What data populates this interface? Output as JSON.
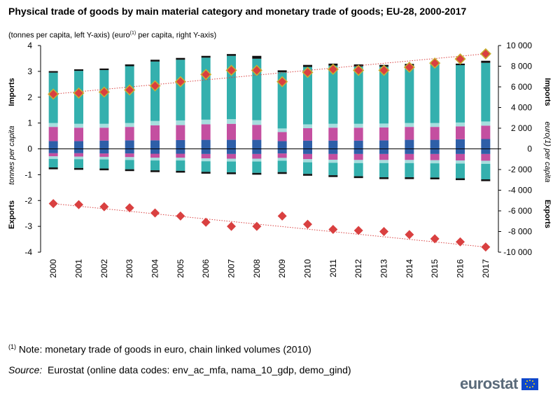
{
  "title": "Physical trade of goods by main material category and monetary trade of goods; EU-28, 2000-2017",
  "subtitle_left": "(tonnes per capita, left Y-axis) (euro",
  "subtitle_sup": "(1)",
  "subtitle_right": " per capita, right Y-axis)",
  "footnote_marker": "(1)",
  "footnote_text": "Note: monetary trade of goods in euro, chain linked volumes (2010)",
  "source_label": "Source:",
  "source_text": "Eurostat (online data codes: env_ac_mfa, nama_10_gdp, demo_gind)",
  "logo_text": "eurostat",
  "chart_data": {
    "type": "bar",
    "stacked": true,
    "categories": [
      "2000",
      "2001",
      "2002",
      "2003",
      "2004",
      "2005",
      "2006",
      "2007",
      "2008",
      "2009",
      "2010",
      "2011",
      "2012",
      "2013",
      "2014",
      "2015",
      "2016",
      "2017"
    ],
    "left_axis": {
      "label": "tonnes per capita",
      "ylim": [
        -4,
        4
      ],
      "ticks": [
        "4",
        "3",
        "2",
        "1",
        "0",
        "-1",
        "-2",
        "-3",
        "-4"
      ]
    },
    "right_axis": {
      "label": "euro(1) per capita",
      "ylim": [
        -10000,
        10000
      ],
      "ticks": [
        "10 000",
        "8 000",
        "6 000",
        "4 000",
        "2 000",
        "0",
        "-2 000",
        "-4 000",
        "-6 000",
        "-8 000",
        "-10 000"
      ]
    },
    "side_labels": {
      "imports": "Imports",
      "exports": "Exports"
    },
    "imports_stacks": [
      {
        "name": "blue",
        "color": "#2e5fa8",
        "values": [
          0.3,
          0.3,
          0.32,
          0.33,
          0.33,
          0.34,
          0.35,
          0.35,
          0.35,
          0.3,
          0.32,
          0.32,
          0.32,
          0.33,
          0.35,
          0.35,
          0.37,
          0.38
        ]
      },
      {
        "name": "magenta",
        "color": "#c44fa0",
        "values": [
          0.55,
          0.52,
          0.5,
          0.52,
          0.58,
          0.58,
          0.6,
          0.62,
          0.58,
          0.35,
          0.48,
          0.5,
          0.5,
          0.5,
          0.5,
          0.5,
          0.5,
          0.52
        ]
      },
      {
        "name": "light cyan",
        "color": "#a6dede",
        "values": [
          0.15,
          0.15,
          0.15,
          0.15,
          0.17,
          0.18,
          0.18,
          0.18,
          0.18,
          0.14,
          0.15,
          0.15,
          0.15,
          0.15,
          0.15,
          0.15,
          0.15,
          0.16
        ]
      },
      {
        "name": "teal",
        "color": "#34b0ae",
        "values": [
          1.95,
          2.05,
          2.08,
          2.2,
          2.3,
          2.35,
          2.4,
          2.45,
          2.38,
          2.18,
          2.22,
          2.25,
          2.22,
          2.2,
          2.22,
          2.28,
          2.22,
          2.27
        ]
      },
      {
        "name": "black",
        "color": "#111111",
        "values": [
          0.06,
          0.06,
          0.06,
          0.07,
          0.07,
          0.07,
          0.07,
          0.07,
          0.11,
          0.07,
          0.08,
          0.08,
          0.08,
          0.07,
          0.07,
          0.07,
          0.06,
          0.08
        ]
      }
    ],
    "exports_stacks": [
      {
        "name": "blue",
        "color": "#2e5fa8",
        "values": [
          0.17,
          0.17,
          0.18,
          0.18,
          0.19,
          0.19,
          0.2,
          0.2,
          0.2,
          0.18,
          0.2,
          0.2,
          0.2,
          0.2,
          0.2,
          0.2,
          0.2,
          0.2
        ]
      },
      {
        "name": "magenta",
        "color": "#c44fa0",
        "values": [
          0.12,
          0.13,
          0.13,
          0.14,
          0.15,
          0.15,
          0.17,
          0.18,
          0.18,
          0.17,
          0.2,
          0.22,
          0.23,
          0.23,
          0.23,
          0.24,
          0.25,
          0.26
        ]
      },
      {
        "name": "light cyan",
        "color": "#a6dede",
        "values": [
          0.1,
          0.1,
          0.1,
          0.11,
          0.11,
          0.11,
          0.11,
          0.11,
          0.11,
          0.11,
          0.12,
          0.12,
          0.12,
          0.12,
          0.12,
          0.12,
          0.12,
          0.12
        ]
      },
      {
        "name": "teal",
        "color": "#34b0ae",
        "values": [
          0.33,
          0.34,
          0.35,
          0.36,
          0.38,
          0.4,
          0.41,
          0.42,
          0.44,
          0.44,
          0.45,
          0.48,
          0.51,
          0.55,
          0.55,
          0.55,
          0.57,
          0.6
        ]
      },
      {
        "name": "black",
        "color": "#111111",
        "values": [
          0.07,
          0.07,
          0.07,
          0.07,
          0.07,
          0.07,
          0.07,
          0.07,
          0.07,
          0.07,
          0.07,
          0.07,
          0.07,
          0.07,
          0.07,
          0.07,
          0.07,
          0.07
        ]
      }
    ],
    "monetary_imports": {
      "name": "Monetary imports (euro per capita)",
      "color": "#d94040",
      "values": [
        5300,
        5400,
        5500,
        5700,
        6100,
        6500,
        7200,
        7600,
        7600,
        6500,
        7400,
        7700,
        7600,
        7600,
        7900,
        8300,
        8700,
        9200
      ]
    },
    "monetary_exports": {
      "name": "Monetary exports (euro per capita)",
      "color": "#d94040",
      "values": [
        -5300,
        -5400,
        -5600,
        -5700,
        -6200,
        -6500,
        -7100,
        -7500,
        -7500,
        -6500,
        -7300,
        -7800,
        -7900,
        -8000,
        -8300,
        -8700,
        -9000,
        -9500
      ]
    },
    "trend_imports": [
      5300,
      9200
    ],
    "trend_exports": [
      -5300,
      -9500
    ]
  }
}
